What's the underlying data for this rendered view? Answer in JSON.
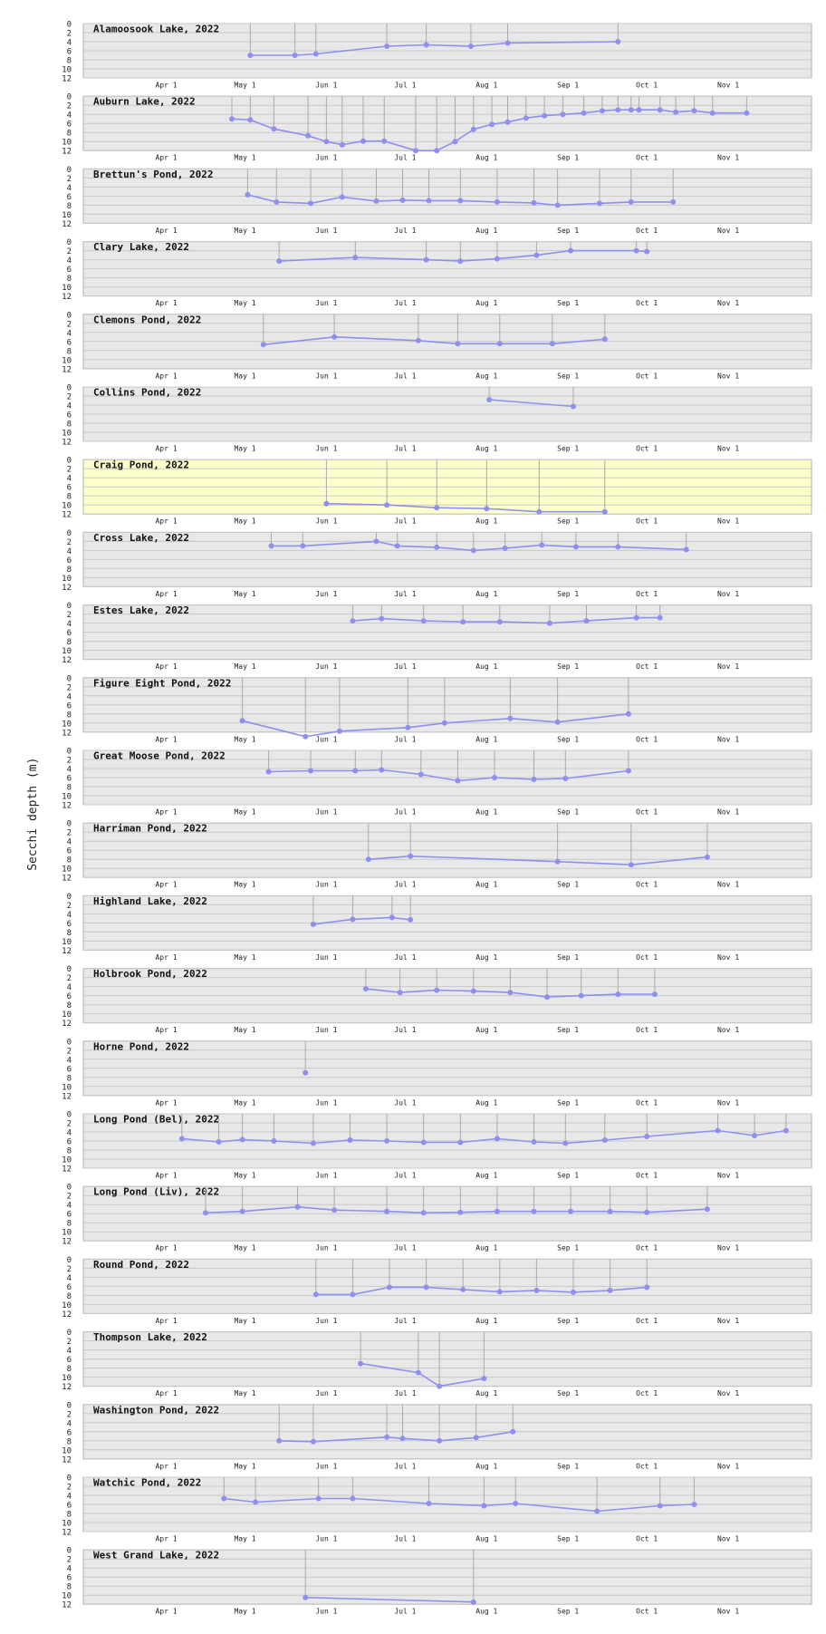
{
  "figure": {
    "ylabel": "Secchi depth (m)",
    "y_ticks": [
      0,
      2,
      4,
      6,
      8,
      10,
      12
    ],
    "x_ticks": [
      "Apr 1",
      "May 1",
      "Jun 1",
      "Jul 1",
      "Aug 1",
      "Sep 1",
      "Oct 1",
      "Nov 1"
    ],
    "colors": {
      "panel_bg": "#e8e8e8",
      "highlight_bg": "#ffffcc",
      "series": "#8f8ff0",
      "stem": "#aaaaaa",
      "grid": "#c8c8c8"
    }
  },
  "chart_data": [
    {
      "type": "line",
      "title": "Alamoosook Lake, 2022",
      "ylim": [
        0,
        12
      ],
      "highlight": false,
      "x": [
        "2022-05-03",
        "2022-05-20",
        "2022-05-28",
        "2022-06-24",
        "2022-07-09",
        "2022-07-26",
        "2022-08-09",
        "2022-09-20"
      ],
      "y": [
        7.0,
        7.0,
        6.7,
        5.0,
        4.7,
        5.0,
        4.3,
        4.0
      ]
    },
    {
      "type": "line",
      "title": "Auburn Lake, 2022",
      "ylim": [
        0,
        12
      ],
      "highlight": false,
      "x": [
        "2022-04-26",
        "2022-05-03",
        "2022-05-12",
        "2022-05-25",
        "2022-06-01",
        "2022-06-07",
        "2022-06-15",
        "2022-06-23",
        "2022-07-05",
        "2022-07-13",
        "2022-07-20",
        "2022-07-27",
        "2022-08-03",
        "2022-08-09",
        "2022-08-16",
        "2022-08-23",
        "2022-08-30",
        "2022-09-07",
        "2022-09-14",
        "2022-09-20",
        "2022-09-25",
        "2022-09-28",
        "2022-10-06",
        "2022-10-12",
        "2022-10-19",
        "2022-10-26",
        "2022-11-08"
      ],
      "y": [
        5.0,
        5.2,
        7.2,
        8.7,
        10.0,
        10.7,
        9.9,
        9.9,
        12.0,
        12.0,
        10.0,
        7.3,
        6.2,
        5.7,
        4.8,
        4.3,
        4.0,
        3.7,
        3.2,
        3.0,
        3.0,
        3.0,
        3.0,
        3.5,
        3.2,
        3.7,
        3.7
      ]
    },
    {
      "type": "line",
      "title": "Brettun's Pond, 2022",
      "ylim": [
        0,
        12
      ],
      "highlight": false,
      "x": [
        "2022-05-02",
        "2022-05-13",
        "2022-05-26",
        "2022-06-07",
        "2022-06-20",
        "2022-06-30",
        "2022-07-10",
        "2022-07-22",
        "2022-08-05",
        "2022-08-19",
        "2022-08-28",
        "2022-09-13",
        "2022-09-25",
        "2022-10-11"
      ],
      "y": [
        5.7,
        7.3,
        7.6,
        6.2,
        7.1,
        6.9,
        7.0,
        7.0,
        7.3,
        7.5,
        8.0,
        7.6,
        7.3,
        7.3
      ]
    },
    {
      "type": "line",
      "title": "Clary Lake, 2022",
      "ylim": [
        0,
        12
      ],
      "highlight": false,
      "x": [
        "2022-05-14",
        "2022-06-12",
        "2022-07-09",
        "2022-07-22",
        "2022-08-05",
        "2022-08-20",
        "2022-09-02",
        "2022-09-27",
        "2022-10-01"
      ],
      "y": [
        4.3,
        3.5,
        4.0,
        4.3,
        3.8,
        3.0,
        2.0,
        2.0,
        2.2
      ]
    },
    {
      "type": "line",
      "title": "Clemons Pond, 2022",
      "ylim": [
        0,
        12
      ],
      "highlight": false,
      "x": [
        "2022-05-08",
        "2022-06-04",
        "2022-07-06",
        "2022-07-21",
        "2022-08-06",
        "2022-08-26",
        "2022-09-15"
      ],
      "y": [
        6.7,
        5.0,
        5.8,
        6.5,
        6.5,
        6.5,
        5.5
      ]
    },
    {
      "type": "line",
      "title": "Collins Pond, 2022",
      "ylim": [
        0,
        12
      ],
      "highlight": false,
      "x": [
        "2022-08-02",
        "2022-09-03"
      ],
      "y": [
        2.8,
        4.3
      ]
    },
    {
      "type": "line",
      "title": "Craig Pond, 2022",
      "ylim": [
        0,
        12
      ],
      "highlight": true,
      "x": [
        "2022-06-01",
        "2022-06-24",
        "2022-07-13",
        "2022-08-01",
        "2022-08-21",
        "2022-09-15"
      ],
      "y": [
        9.7,
        10.0,
        10.6,
        10.8,
        11.5,
        11.5
      ]
    },
    {
      "type": "line",
      "title": "Cross Lake, 2022",
      "ylim": [
        0,
        12
      ],
      "highlight": false,
      "x": [
        "2022-05-11",
        "2022-05-23",
        "2022-06-20",
        "2022-06-28",
        "2022-07-13",
        "2022-07-27",
        "2022-08-08",
        "2022-08-22",
        "2022-09-04",
        "2022-09-20",
        "2022-10-16"
      ],
      "y": [
        3.0,
        3.0,
        2.0,
        3.0,
        3.3,
        4.0,
        3.5,
        2.8,
        3.2,
        3.2,
        3.8
      ]
    },
    {
      "type": "line",
      "title": "Estes Lake, 2022",
      "ylim": [
        0,
        12
      ],
      "highlight": false,
      "x": [
        "2022-06-11",
        "2022-06-22",
        "2022-07-08",
        "2022-07-23",
        "2022-08-06",
        "2022-08-25",
        "2022-09-08",
        "2022-09-27",
        "2022-10-06"
      ],
      "y": [
        3.5,
        3.0,
        3.5,
        3.7,
        3.7,
        4.0,
        3.5,
        2.8,
        2.8
      ]
    },
    {
      "type": "line",
      "title": "Figure Eight Pond, 2022",
      "ylim": [
        0,
        12
      ],
      "highlight": false,
      "x": [
        "2022-04-30",
        "2022-05-24",
        "2022-06-06",
        "2022-07-02",
        "2022-07-16",
        "2022-08-10",
        "2022-08-28",
        "2022-09-24"
      ],
      "y": [
        9.5,
        13.0,
        11.8,
        11.0,
        10.0,
        9.0,
        9.8,
        8.0
      ]
    },
    {
      "type": "line",
      "title": "Great Moose Pond, 2022",
      "ylim": [
        0,
        12
      ],
      "highlight": false,
      "x": [
        "2022-05-10",
        "2022-05-26",
        "2022-06-12",
        "2022-06-22",
        "2022-07-07",
        "2022-07-21",
        "2022-08-04",
        "2022-08-19",
        "2022-08-31",
        "2022-09-24"
      ],
      "y": [
        4.7,
        4.5,
        4.5,
        4.3,
        5.3,
        6.7,
        6.0,
        6.4,
        6.2,
        4.5
      ]
    },
    {
      "type": "line",
      "title": "Harriman Pond, 2022",
      "ylim": [
        0,
        12
      ],
      "highlight": false,
      "x": [
        "2022-06-17",
        "2022-07-03",
        "2022-08-28",
        "2022-09-25",
        "2022-10-24"
      ],
      "y": [
        8.0,
        7.3,
        8.5,
        9.2,
        7.5
      ]
    },
    {
      "type": "line",
      "title": "Highland Lake, 2022",
      "ylim": [
        0,
        12
      ],
      "highlight": false,
      "x": [
        "2022-05-27",
        "2022-06-11",
        "2022-06-26",
        "2022-07-03"
      ],
      "y": [
        6.3,
        5.2,
        4.8,
        5.3
      ]
    },
    {
      "type": "line",
      "title": "Holbrook Pond, 2022",
      "ylim": [
        0,
        12
      ],
      "highlight": false,
      "x": [
        "2022-06-16",
        "2022-06-29",
        "2022-07-13",
        "2022-07-27",
        "2022-08-10",
        "2022-08-24",
        "2022-09-06",
        "2022-09-20",
        "2022-10-04"
      ],
      "y": [
        4.5,
        5.3,
        4.8,
        5.0,
        5.3,
        6.3,
        6.0,
        5.7,
        5.7
      ]
    },
    {
      "type": "line",
      "title": "Horne Pond, 2022",
      "ylim": [
        0,
        12
      ],
      "highlight": false,
      "x": [
        "2022-05-24"
      ],
      "y": [
        7.0
      ]
    },
    {
      "type": "line",
      "title": "Long Pond (Bel), 2022",
      "ylim": [
        0,
        12
      ],
      "highlight": false,
      "x": [
        "2022-04-07",
        "2022-04-21",
        "2022-04-30",
        "2022-05-12",
        "2022-05-27",
        "2022-06-10",
        "2022-06-24",
        "2022-07-08",
        "2022-07-22",
        "2022-08-05",
        "2022-08-19",
        "2022-08-31",
        "2022-09-15",
        "2022-10-01",
        "2022-10-28",
        "2022-11-11",
        "2022-11-23"
      ],
      "y": [
        5.5,
        6.2,
        5.7,
        6.0,
        6.5,
        5.8,
        6.0,
        6.3,
        6.3,
        5.5,
        6.2,
        6.5,
        5.8,
        5.0,
        3.7,
        4.8,
        3.7
      ]
    },
    {
      "type": "line",
      "title": "Long Pond (Liv), 2022",
      "ylim": [
        0,
        12
      ],
      "highlight": false,
      "x": [
        "2022-04-16",
        "2022-04-30",
        "2022-05-21",
        "2022-06-04",
        "2022-06-24",
        "2022-07-08",
        "2022-07-22",
        "2022-08-05",
        "2022-08-19",
        "2022-09-02",
        "2022-09-17",
        "2022-10-01",
        "2022-10-24"
      ],
      "y": [
        5.8,
        5.5,
        4.5,
        5.2,
        5.5,
        5.8,
        5.7,
        5.5,
        5.5,
        5.5,
        5.5,
        5.7,
        5.0
      ]
    },
    {
      "type": "line",
      "title": "Round Pond, 2022",
      "ylim": [
        0,
        12
      ],
      "highlight": false,
      "x": [
        "2022-05-28",
        "2022-06-11",
        "2022-06-25",
        "2022-07-09",
        "2022-07-23",
        "2022-08-06",
        "2022-08-20",
        "2022-09-03",
        "2022-09-17",
        "2022-10-01"
      ],
      "y": [
        7.8,
        7.8,
        6.2,
        6.2,
        6.7,
        7.2,
        6.9,
        7.3,
        6.9,
        6.2
      ]
    },
    {
      "type": "line",
      "title": "Thompson Lake, 2022",
      "ylim": [
        0,
        12
      ],
      "highlight": false,
      "x": [
        "2022-06-14",
        "2022-07-06",
        "2022-07-14",
        "2022-07-31"
      ],
      "y": [
        7.0,
        9.0,
        12.0,
        10.3
      ]
    },
    {
      "type": "line",
      "title": "Washington Pond, 2022",
      "ylim": [
        0,
        12
      ],
      "highlight": false,
      "x": [
        "2022-05-14",
        "2022-05-27",
        "2022-06-24",
        "2022-06-30",
        "2022-07-14",
        "2022-07-28",
        "2022-08-11"
      ],
      "y": [
        8.0,
        8.2,
        7.2,
        7.5,
        8.0,
        7.3,
        6.0
      ]
    },
    {
      "type": "line",
      "title": "Watchic Pond, 2022",
      "ylim": [
        0,
        12
      ],
      "highlight": false,
      "x": [
        "2022-04-23",
        "2022-05-05",
        "2022-05-29",
        "2022-06-11",
        "2022-07-10",
        "2022-07-31",
        "2022-08-12",
        "2022-09-12",
        "2022-10-06",
        "2022-10-19"
      ],
      "y": [
        4.7,
        5.5,
        4.7,
        4.7,
        5.8,
        6.3,
        5.8,
        7.5,
        6.3,
        6.0
      ]
    },
    {
      "type": "line",
      "title": "West Grand Lake, 2022",
      "ylim": [
        0,
        12
      ],
      "highlight": false,
      "x": [
        "2022-05-24",
        "2022-07-27"
      ],
      "y": [
        10.5,
        11.5
      ]
    }
  ]
}
